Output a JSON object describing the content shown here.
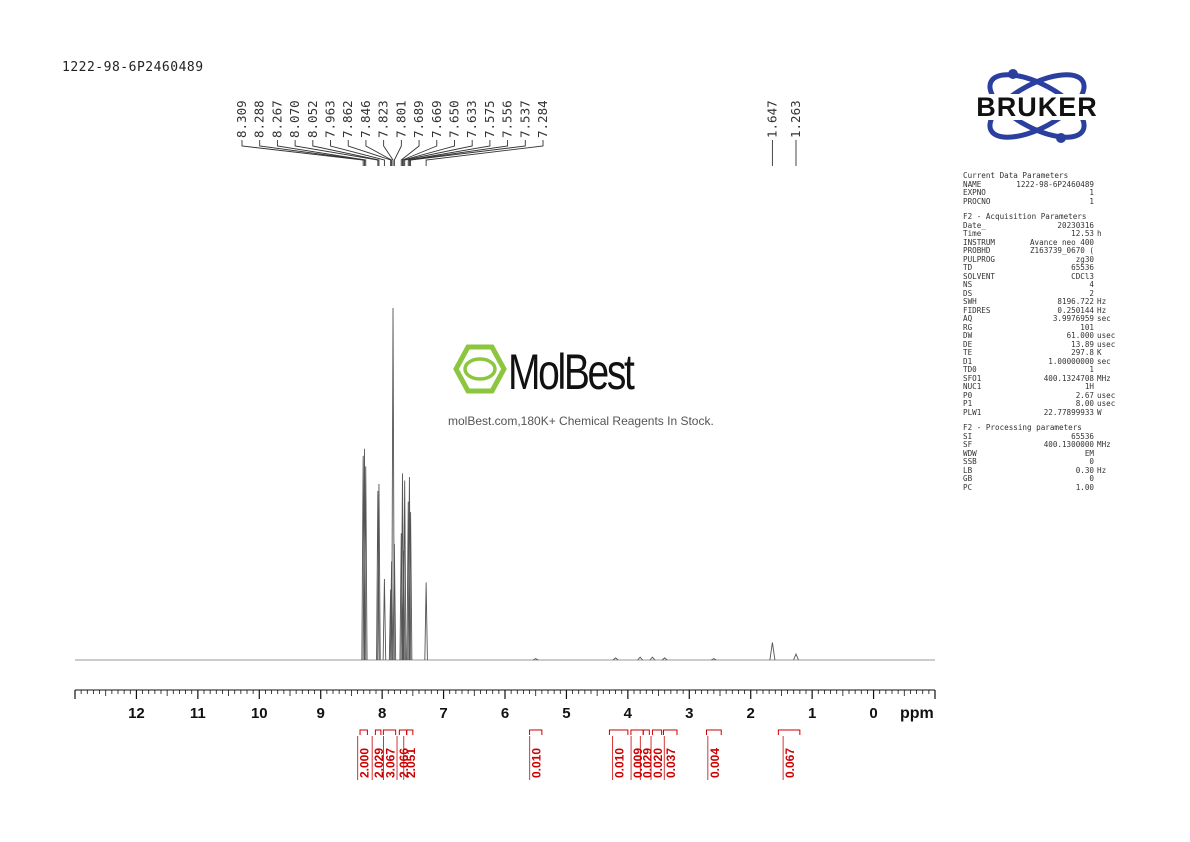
{
  "sample_id": "1222-98-6P2460489",
  "brand": {
    "logo_text": "BRUKER",
    "logo_color": "#2a3f9e",
    "watermark_name": "MolBest",
    "watermark_tagline": "molBest.com,180K+ Chemical Reagents In Stock.",
    "watermark_color": "#8cc63f"
  },
  "parameters": [
    {
      "title": "Current Data Parameters",
      "rows": [
        {
          "key": "NAME",
          "value": "1222-98-6P2460489",
          "unit": ""
        },
        {
          "key": "EXPNO",
          "value": "1",
          "unit": ""
        },
        {
          "key": "PROCNO",
          "value": "1",
          "unit": ""
        }
      ]
    },
    {
      "title": "F2 - Acquisition Parameters",
      "rows": [
        {
          "key": "Date_",
          "value": "20230316",
          "unit": ""
        },
        {
          "key": "Time",
          "value": "12.53",
          "unit": "h"
        },
        {
          "key": "INSTRUM",
          "value": "Avance neo 400",
          "unit": ""
        },
        {
          "key": "PROBHD",
          "value": "Z163739_0670 (",
          "unit": ""
        },
        {
          "key": "PULPROG",
          "value": "zg30",
          "unit": ""
        },
        {
          "key": "TD",
          "value": "65536",
          "unit": ""
        },
        {
          "key": "SOLVENT",
          "value": "CDCl3",
          "unit": ""
        },
        {
          "key": "NS",
          "value": "4",
          "unit": ""
        },
        {
          "key": "DS",
          "value": "2",
          "unit": ""
        },
        {
          "key": "SWH",
          "value": "8196.722",
          "unit": "Hz"
        },
        {
          "key": "FIDRES",
          "value": "0.250144",
          "unit": "Hz"
        },
        {
          "key": "AQ",
          "value": "3.9976959",
          "unit": "sec"
        },
        {
          "key": "RG",
          "value": "101",
          "unit": ""
        },
        {
          "key": "DW",
          "value": "61.000",
          "unit": "usec"
        },
        {
          "key": "DE",
          "value": "13.89",
          "unit": "usec"
        },
        {
          "key": "TE",
          "value": "297.8",
          "unit": "K"
        },
        {
          "key": "D1",
          "value": "1.00000000",
          "unit": "sec"
        },
        {
          "key": "TD0",
          "value": "1",
          "unit": ""
        },
        {
          "key": "SFO1",
          "value": "400.1324708",
          "unit": "MHz"
        },
        {
          "key": "NUC1",
          "value": "1H",
          "unit": ""
        },
        {
          "key": "P0",
          "value": "2.67",
          "unit": "usec"
        },
        {
          "key": "P1",
          "value": "8.00",
          "unit": "usec"
        },
        {
          "key": "PLW1",
          "value": "22.77899933",
          "unit": "W"
        }
      ]
    },
    {
      "title": "F2 - Processing parameters",
      "rows": [
        {
          "key": "SI",
          "value": "65536",
          "unit": ""
        },
        {
          "key": "SF",
          "value": "400.1300000",
          "unit": "MHz"
        },
        {
          "key": "WDW",
          "value": "EM",
          "unit": ""
        },
        {
          "key": "SSB",
          "value": "0",
          "unit": ""
        },
        {
          "key": "LB",
          "value": "0.30",
          "unit": "Hz"
        },
        {
          "key": "GB",
          "value": "0",
          "unit": ""
        },
        {
          "key": "PC",
          "value": "1.00",
          "unit": ""
        }
      ]
    }
  ],
  "chart_data": {
    "type": "line",
    "title": "",
    "xlabel": "ppm",
    "ylabel": "",
    "x_reversed": true,
    "xlim": [
      13.0,
      -1.0
    ],
    "x_ticks": [
      12,
      11,
      10,
      9,
      8,
      7,
      6,
      5,
      4,
      3,
      2,
      1,
      0
    ],
    "x_tick_labels": [
      "12",
      "11",
      "10",
      "9",
      "8",
      "7",
      "6",
      "5",
      "4",
      "3",
      "2",
      "1",
      "0"
    ],
    "grid": false,
    "line_color": "#555555",
    "peak_label_color": "#333333",
    "integral_color": "#cc0000",
    "peaks": [
      {
        "ppm": 8.309,
        "height": 0.58
      },
      {
        "ppm": 8.288,
        "height": 0.6
      },
      {
        "ppm": 8.267,
        "height": 0.55
      },
      {
        "ppm": 8.07,
        "height": 0.48
      },
      {
        "ppm": 8.052,
        "height": 0.5
      },
      {
        "ppm": 7.963,
        "height": 0.23
      },
      {
        "ppm": 7.862,
        "height": 0.2
      },
      {
        "ppm": 7.846,
        "height": 0.28
      },
      {
        "ppm": 7.823,
        "height": 1.0
      },
      {
        "ppm": 7.801,
        "height": 0.33
      },
      {
        "ppm": 7.689,
        "height": 0.36
      },
      {
        "ppm": 7.669,
        "height": 0.53
      },
      {
        "ppm": 7.65,
        "height": 0.31
      },
      {
        "ppm": 7.633,
        "height": 0.51
      },
      {
        "ppm": 7.575,
        "height": 0.45
      },
      {
        "ppm": 7.556,
        "height": 0.52
      },
      {
        "ppm": 7.537,
        "height": 0.42
      },
      {
        "ppm": 7.284,
        "height": 0.22
      },
      {
        "ppm": 5.5,
        "height": 0.004
      },
      {
        "ppm": 4.2,
        "height": 0.006
      },
      {
        "ppm": 3.8,
        "height": 0.008
      },
      {
        "ppm": 3.6,
        "height": 0.008
      },
      {
        "ppm": 3.4,
        "height": 0.006
      },
      {
        "ppm": 2.6,
        "height": 0.004
      },
      {
        "ppm": 1.647,
        "height": 0.05
      },
      {
        "ppm": 1.263,
        "height": 0.017
      }
    ],
    "peak_labels": [
      {
        "label": "8.309",
        "ppm": 8.309
      },
      {
        "label": "8.288",
        "ppm": 8.288
      },
      {
        "label": "8.267",
        "ppm": 8.267
      },
      {
        "label": "8.070",
        "ppm": 8.07
      },
      {
        "label": "8.052",
        "ppm": 8.052
      },
      {
        "label": "7.963",
        "ppm": 7.963
      },
      {
        "label": "7.862",
        "ppm": 7.862
      },
      {
        "label": "7.846",
        "ppm": 7.846
      },
      {
        "label": "7.823",
        "ppm": 7.823
      },
      {
        "label": "7.801",
        "ppm": 7.801
      },
      {
        "label": "7.689",
        "ppm": 7.689
      },
      {
        "label": "7.669",
        "ppm": 7.669
      },
      {
        "label": "7.650",
        "ppm": 7.65
      },
      {
        "label": "7.633",
        "ppm": 7.633
      },
      {
        "label": "7.575",
        "ppm": 7.575
      },
      {
        "label": "7.556",
        "ppm": 7.556
      },
      {
        "label": "7.537",
        "ppm": 7.537
      },
      {
        "label": "7.284",
        "ppm": 7.284
      },
      {
        "label": "1.647",
        "ppm": 1.647
      },
      {
        "label": "1.263",
        "ppm": 1.263
      }
    ],
    "integrals": [
      {
        "value": "2.000",
        "from": 8.36,
        "to": 8.24
      },
      {
        "value": "2.029",
        "from": 8.11,
        "to": 8.02
      },
      {
        "value": "3.067",
        "from": 7.98,
        "to": 7.78
      },
      {
        "value": "2.066",
        "from": 7.72,
        "to": 7.6
      },
      {
        "value": "2.051",
        "from": 7.6,
        "to": 7.5
      },
      {
        "value": "0.010",
        "from": 5.6,
        "to": 5.4
      },
      {
        "value": "0.010",
        "from": 4.3,
        "to": 4.0
      },
      {
        "value": "0.009",
        "from": 3.95,
        "to": 3.75
      },
      {
        "value": "0.029",
        "from": 3.75,
        "to": 3.65
      },
      {
        "value": "0.020",
        "from": 3.6,
        "to": 3.45
      },
      {
        "value": "0.037",
        "from": 3.42,
        "to": 3.2
      },
      {
        "value": "0.004",
        "from": 2.72,
        "to": 2.48
      },
      {
        "value": "0.067",
        "from": 1.55,
        "to": 1.2
      }
    ]
  }
}
